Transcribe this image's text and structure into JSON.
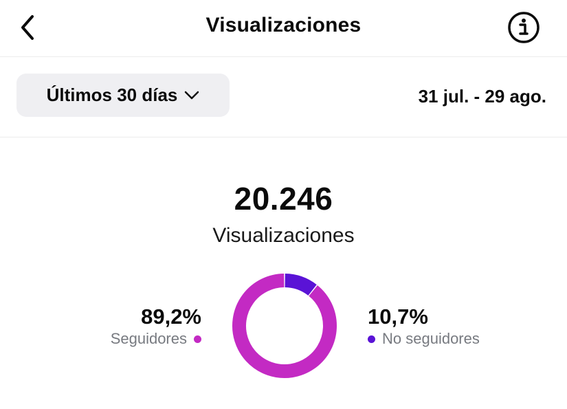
{
  "header": {
    "title": "Visualizaciones",
    "back_icon": "chevron-left-icon",
    "info_icon": "info-circle-icon"
  },
  "filter": {
    "range_label": "Últimos 30 días",
    "dropdown_icon": "chevron-down-icon",
    "date_range": "31 jul. - 29 ago."
  },
  "summary": {
    "total": "20.246",
    "total_label": "Visualizaciones"
  },
  "breakdown": {
    "followers": {
      "percent_text": "89,2%",
      "label": "Seguidores",
      "value": 89.2,
      "color": "#c32ac3"
    },
    "non_followers": {
      "percent_text": "10,7%",
      "label": "No seguidores",
      "value": 10.7,
      "color": "#5a13d6"
    }
  },
  "chart_data": {
    "type": "pie",
    "categories": [
      "Seguidores",
      "No seguidores"
    ],
    "values": [
      89.2,
      10.7
    ],
    "colors": [
      "#c32ac3",
      "#5a13d6"
    ]
  }
}
